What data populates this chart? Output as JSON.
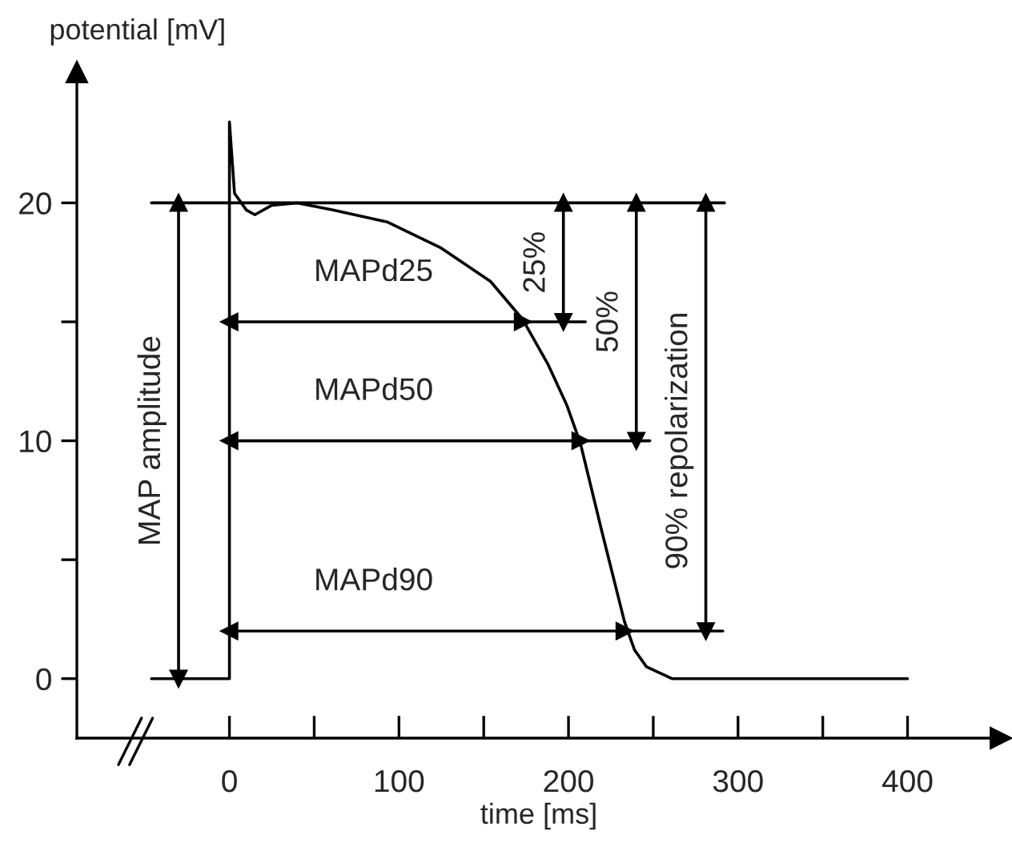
{
  "chart_data": {
    "type": "line",
    "ylabel": "potential [mV]",
    "xlabel": "time [ms]",
    "xlim": [
      -90,
      455
    ],
    "ylim": [
      -2.5,
      25.5
    ],
    "xticks": [
      0,
      {
        "value": 50,
        "label": null
      },
      100,
      {
        "value": 150,
        "label": null
      },
      200,
      {
        "value": 250,
        "label": null
      },
      300,
      {
        "value": 350,
        "label": null
      },
      400
    ],
    "yticks": [
      0,
      {
        "value": 5,
        "label": null
      },
      10,
      {
        "value": 15,
        "label": null
      },
      20
    ],
    "grid": false,
    "series": [
      {
        "color": "#000000",
        "x": [
          -46,
          0,
          0,
          3,
          10,
          15,
          25,
          40,
          61,
          93,
          125,
          154,
          173,
          188,
          199,
          207,
          220,
          233,
          239,
          246,
          261,
          400
        ],
        "values": [
          0,
          0,
          23.4,
          20.4,
          19.7,
          19.5,
          19.9,
          20,
          19.7,
          19.2,
          18.1,
          16.7,
          15.1,
          13.2,
          11.5,
          9.9,
          6.1,
          2.4,
          1.2,
          0.5,
          0,
          0
        ]
      },
      {
        "color": "#000000",
        "x": [
          -46,
          292
        ],
        "values": [
          20,
          20
        ]
      },
      {
        "color": "#000000",
        "x": [
          0,
          173
        ],
        "values": [
          15,
          15
        ],
        "marker": "triangle"
      },
      {
        "color": "#000000",
        "x": [
          173,
          210
        ],
        "values": [
          15,
          15
        ]
      },
      {
        "color": "#000000",
        "x": [
          0,
          207
        ],
        "values": [
          10,
          10
        ],
        "marker": "triangle"
      },
      {
        "color": "#000000",
        "x": [
          207,
          248
        ],
        "values": [
          10,
          10
        ]
      },
      {
        "color": "#000000",
        "x": [
          0,
          233
        ],
        "values": [
          2,
          2
        ],
        "marker": "triangle"
      },
      {
        "color": "#000000",
        "x": [
          233,
          291
        ],
        "values": [
          2,
          2
        ]
      },
      {
        "color": "#000000",
        "x": [
          -30,
          -30
        ],
        "values": [
          20,
          0
        ],
        "marker": "triangle"
      },
      {
        "color": "#000000",
        "x": [
          197,
          197
        ],
        "values": [
          20,
          15
        ],
        "marker": "triangle"
      },
      {
        "color": "#000000",
        "x": [
          240,
          240
        ],
        "values": [
          20,
          10
        ],
        "marker": "triangle"
      },
      {
        "color": "#000000",
        "x": [
          281,
          281
        ],
        "values": [
          20,
          2
        ],
        "marker": "triangle"
      }
    ],
    "annotations": [
      {
        "text": "MAPd25",
        "x": 85,
        "y": 15
      },
      {
        "text": "MAPd50",
        "x": 85,
        "y": 10
      },
      {
        "text": "MAPd90",
        "x": 85,
        "y": 2
      },
      {
        "text": "MAP amplitude",
        "x": -30,
        "y": 10
      },
      {
        "text": "25%",
        "x": 197,
        "y": 17.5
      },
      {
        "text": "50%",
        "x": 240,
        "y": 15
      },
      {
        "text": "90% repolarization",
        "x": 281,
        "y": 10
      }
    ]
  }
}
